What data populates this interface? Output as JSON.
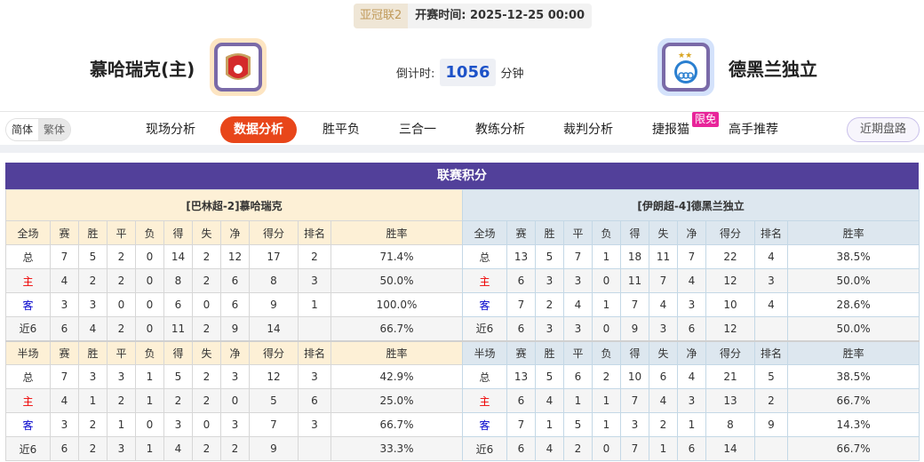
{
  "match": {
    "league": "亚冠联2",
    "kickoff_label": "开赛时间:",
    "kickoff": "2025-12-25 00:00",
    "home": {
      "name": "慕哈瑞克(主)",
      "logo": "muharraq-crest"
    },
    "away": {
      "name": "德黑兰独立",
      "logo": "esteghlal-crest"
    },
    "countdown_label": "倒计时:",
    "countdown": "1056",
    "countdown_unit": "分钟"
  },
  "nav": {
    "lang": [
      "简体",
      "繁体"
    ],
    "items": [
      "现场分析",
      "数据分析",
      "胜平负",
      "三合一",
      "教练分析",
      "裁判分析",
      "捷报猫",
      "高手推荐"
    ],
    "active": "数据分析",
    "badge": "限免",
    "recent": "近期盘路"
  },
  "colors": {
    "accent": "#e8461a",
    "title_bg": "#52409a",
    "home_bg": "#fdf0d6",
    "away_bg": "#dde7ef"
  },
  "standings": {
    "title": "联赛积分",
    "headers_full": [
      "全场",
      "赛",
      "胜",
      "平",
      "负",
      "得",
      "失",
      "净",
      "得分",
      "排名",
      "胜率"
    ],
    "headers_half": [
      "半场",
      "赛",
      "胜",
      "平",
      "负",
      "得",
      "失",
      "净",
      "得分",
      "排名",
      "胜率"
    ],
    "home": {
      "team": "[巴林超-2]慕哈瑞克",
      "full": [
        [
          "总",
          "7",
          "5",
          "2",
          "0",
          "14",
          "2",
          "12",
          "17",
          "2",
          "71.4%"
        ],
        [
          "主",
          "4",
          "2",
          "2",
          "0",
          "8",
          "2",
          "6",
          "8",
          "3",
          "50.0%"
        ],
        [
          "客",
          "3",
          "3",
          "0",
          "0",
          "6",
          "0",
          "6",
          "9",
          "1",
          "100.0%"
        ],
        [
          "近6",
          "6",
          "4",
          "2",
          "0",
          "11",
          "2",
          "9",
          "14",
          "",
          "66.7%"
        ]
      ],
      "half": [
        [
          "总",
          "7",
          "3",
          "3",
          "1",
          "5",
          "2",
          "3",
          "12",
          "3",
          "42.9%"
        ],
        [
          "主",
          "4",
          "1",
          "2",
          "1",
          "2",
          "2",
          "0",
          "5",
          "6",
          "25.0%"
        ],
        [
          "客",
          "3",
          "2",
          "1",
          "0",
          "3",
          "0",
          "3",
          "7",
          "3",
          "66.7%"
        ],
        [
          "近6",
          "6",
          "2",
          "3",
          "1",
          "4",
          "2",
          "2",
          "9",
          "",
          "33.3%"
        ]
      ]
    },
    "away": {
      "team": "[伊朗超-4]德黑兰独立",
      "full": [
        [
          "总",
          "13",
          "5",
          "7",
          "1",
          "18",
          "11",
          "7",
          "22",
          "4",
          "38.5%"
        ],
        [
          "主",
          "6",
          "3",
          "3",
          "0",
          "11",
          "7",
          "4",
          "12",
          "3",
          "50.0%"
        ],
        [
          "客",
          "7",
          "2",
          "4",
          "1",
          "7",
          "4",
          "3",
          "10",
          "4",
          "28.6%"
        ],
        [
          "近6",
          "6",
          "3",
          "3",
          "0",
          "9",
          "3",
          "6",
          "12",
          "",
          "50.0%"
        ]
      ],
      "half": [
        [
          "总",
          "13",
          "5",
          "6",
          "2",
          "10",
          "6",
          "4",
          "21",
          "5",
          "38.5%"
        ],
        [
          "主",
          "6",
          "4",
          "1",
          "1",
          "7",
          "4",
          "3",
          "13",
          "2",
          "66.7%"
        ],
        [
          "客",
          "7",
          "1",
          "5",
          "1",
          "3",
          "2",
          "1",
          "8",
          "9",
          "14.3%"
        ],
        [
          "近6",
          "6",
          "4",
          "2",
          "0",
          "7",
          "1",
          "6",
          "14",
          "",
          "66.7%"
        ]
      ]
    }
  }
}
